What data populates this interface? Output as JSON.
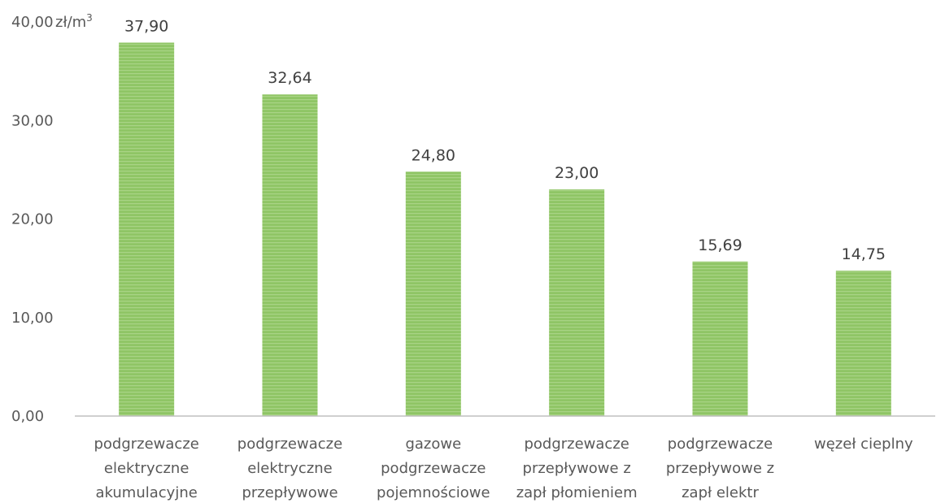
{
  "chart_data": {
    "type": "bar",
    "ylim": [
      0,
      40
    ],
    "yticks": [
      "0,00",
      "10,00",
      "20,00",
      "30,00",
      "40,00"
    ],
    "yunit": "zł/m",
    "yunit_sup": "3",
    "grid": false,
    "categories": [
      [
        "podgrzewacze",
        "elektryczne",
        "akumulacyjne"
      ],
      [
        "podgrzewacze",
        "elektryczne",
        "przepływowe"
      ],
      [
        "gazowe",
        "podgrzewacze",
        "pojemnościowe"
      ],
      [
        "podgrzewacze",
        "przepływowe z",
        "zapł płomieniem"
      ],
      [
        "podgrzewacze",
        "przepływowe z",
        "zapł elektr"
      ],
      [
        "węzeł cieplny"
      ]
    ],
    "values": [
      37.9,
      32.64,
      24.8,
      23.0,
      15.69,
      14.75
    ],
    "value_labels": [
      "37,90",
      "32,64",
      "24,80",
      "23,00",
      "15,69",
      "14,75"
    ],
    "colors": {
      "bar": "#8fc565",
      "bar_stripe": "#a9d486",
      "axis": "#bfbfbf"
    }
  }
}
